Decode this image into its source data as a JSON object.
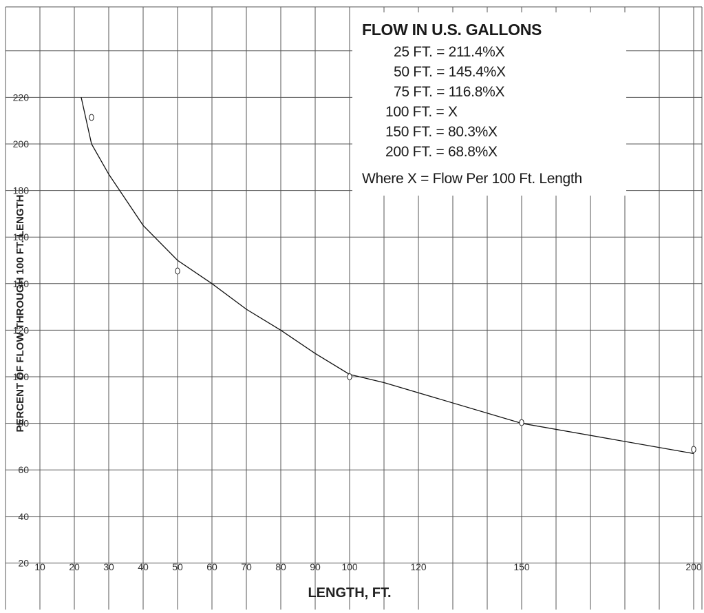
{
  "chart_data": {
    "type": "line",
    "title": "",
    "xlabel": "LENGTH, FT.",
    "ylabel": "PERCENT OF FLOW THROUGH 100 FT. LENGTH",
    "x_ticks": [
      10,
      20,
      30,
      40,
      50,
      60,
      70,
      80,
      90,
      100,
      120,
      150,
      200
    ],
    "y_ticks": [
      20,
      40,
      60,
      80,
      100,
      120,
      140,
      160,
      180,
      200,
      220
    ],
    "xlim": [
      10,
      200
    ],
    "ylim": [
      0,
      240
    ],
    "grid": true,
    "series": [
      {
        "curve": [
          {
            "x": 22,
            "y": 220
          },
          {
            "x": 25,
            "y": 200
          },
          {
            "x": 30,
            "y": 187
          },
          {
            "x": 40,
            "y": 165
          },
          {
            "x": 50,
            "y": 150
          },
          {
            "x": 60,
            "y": 140
          },
          {
            "x": 70,
            "y": 129
          },
          {
            "x": 80,
            "y": 120
          },
          {
            "x": 90,
            "y": 110
          },
          {
            "x": 100,
            "y": 101
          },
          {
            "x": 110,
            "y": 97.5
          },
          {
            "x": 150,
            "y": 80
          },
          {
            "x": 200,
            "y": 67
          }
        ],
        "points": [
          {
            "x": 25,
            "y": 211.4
          },
          {
            "x": 50,
            "y": 145.4
          },
          {
            "x": 100,
            "y": 100
          },
          {
            "x": 150,
            "y": 80.3
          },
          {
            "x": 200,
            "y": 68.8
          }
        ]
      }
    ],
    "annotation": {
      "title": "FLOW IN U.S. GALLONS",
      "lines": [
        "25 FT. = 211.4%X",
        "50 FT. = 145.4%X",
        "75 FT. = 116.8%X",
        "100 FT. = X",
        "150 FT. = 80.3%X",
        "200 FT. = 68.8%X"
      ],
      "note": "Where X = Flow Per 100 Ft. Length",
      "placement": "top-right"
    }
  }
}
